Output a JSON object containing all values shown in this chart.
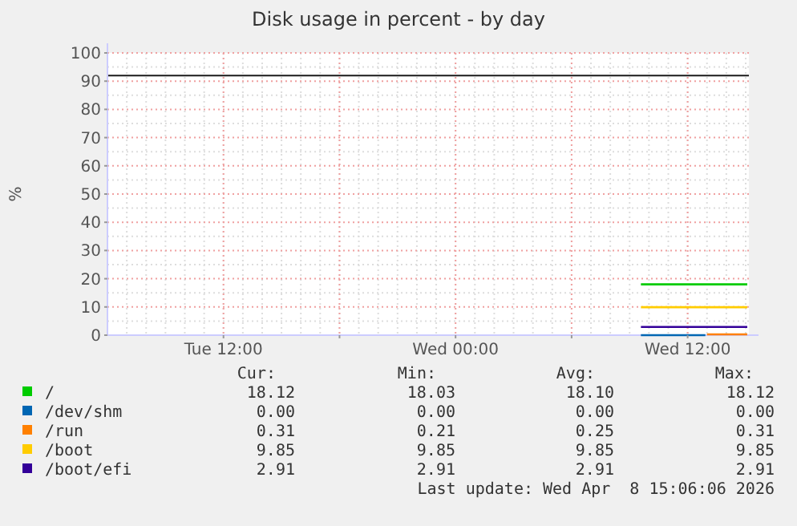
{
  "chart_data": {
    "type": "line",
    "title": "Disk usage in percent - by day",
    "ylabel": "%",
    "xlim": [
      "2026-04-07T06:00",
      "2026-04-08T15:10"
    ],
    "xticks": [
      {
        "value": "2026-04-07T12:00",
        "label": "Tue 12:00"
      },
      {
        "value": "2026-04-07T18:00",
        "label": null
      },
      {
        "value": "2026-04-08T00:00",
        "label": "Wed 00:00"
      },
      {
        "value": "2026-04-08T06:00",
        "label": null
      },
      {
        "value": "2026-04-08T12:00",
        "label": "Wed 12:00"
      }
    ],
    "ylim": [
      0,
      100
    ],
    "yticks": [
      0,
      10,
      20,
      30,
      40,
      50,
      60,
      70,
      80,
      90,
      100
    ],
    "grid": true,
    "legend": "bottom",
    "series": [
      {
        "name": "/",
        "color": "#00cc00",
        "x": [
          "2026-04-08T09:35",
          "2026-04-08T12:00",
          "2026-04-08T15:05"
        ],
        "values": [
          18,
          18,
          18
        ]
      },
      {
        "name": "/dev/shm",
        "color": "#0066b3",
        "x": [
          "2026-04-08T09:35",
          "2026-04-08T12:55"
        ],
        "values": [
          0,
          0
        ]
      },
      {
        "name": "/run",
        "color": "#ff8000",
        "x": [
          "2026-04-08T13:00",
          "2026-04-08T15:05"
        ],
        "values": [
          0.3,
          0.3
        ]
      },
      {
        "name": "/boot",
        "color": "#ffcc00",
        "x": [
          "2026-04-08T09:35",
          "2026-04-08T15:05"
        ],
        "values": [
          9.9,
          9.9
        ]
      },
      {
        "name": "/boot/efi",
        "color": "#330099",
        "x": [
          "2026-04-08T09:35",
          "2026-04-08T15:05"
        ],
        "values": [
          2.9,
          2.9
        ]
      }
    ],
    "ref_lines": [
      {
        "axis": "y",
        "value": 92,
        "color": "#1a1a1a"
      }
    ],
    "annotations": [
      "Cur:",
      "Min:",
      "Avg:",
      "Max:",
      "18.12",
      "18.03",
      "18.10",
      "18.12",
      "0.00",
      "0.00",
      "0.00",
      "0.00",
      "0.31",
      "0.21",
      "0.25",
      "0.31",
      "9.85",
      "9.85",
      "9.85",
      "9.85",
      "2.91",
      "2.91",
      "2.91",
      "2.91",
      "Last update: Wed Apr  8 15:06:06 2026"
    ]
  }
}
